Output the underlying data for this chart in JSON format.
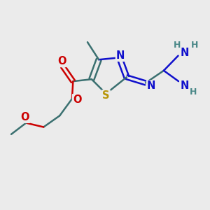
{
  "bg_color": "#ebebeb",
  "bond_color": "#3a7070",
  "bond_width": 1.8,
  "atom_colors": {
    "S": "#b8960a",
    "N": "#1010cc",
    "O": "#cc0000",
    "C": "#3a7070",
    "H": "#4a8888"
  },
  "font_size_atom": 10.5,
  "font_size_h": 9.0
}
